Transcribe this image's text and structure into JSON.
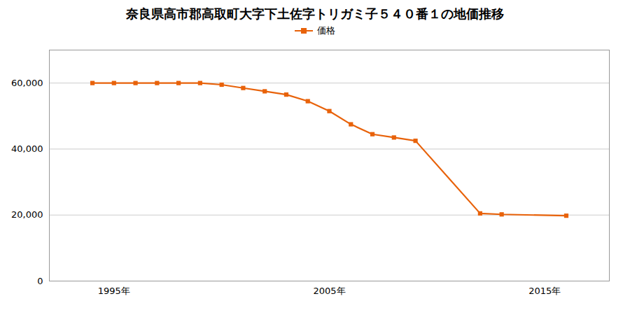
{
  "chart_data": {
    "type": "line",
    "title": "奈良県高市郡高取町大字下土佐字トリガミ子５４０番１の地価推移",
    "x": [
      1994,
      1995,
      1996,
      1997,
      1998,
      1999,
      2000,
      2001,
      2002,
      2003,
      2004,
      2005,
      2006,
      2007,
      2008,
      2009,
      2012,
      2013,
      2016
    ],
    "series": [
      {
        "name": "価格",
        "color": "#e8620a",
        "marker": "square",
        "values": [
          60000,
          60000,
          60000,
          60000,
          60000,
          60000,
          59500,
          58500,
          57500,
          56500,
          54500,
          51500,
          47500,
          44500,
          43500,
          42500,
          20500,
          20200,
          19800
        ]
      }
    ],
    "xlim": [
      1992,
      2018
    ],
    "xticks": [
      {
        "value": 1995,
        "label": "1995年"
      },
      {
        "value": 2005,
        "label": "2005年"
      },
      {
        "value": 2015,
        "label": "2015年"
      }
    ],
    "ylim": [
      0,
      70000
    ],
    "yticks": [
      0,
      {
        "value": 20000,
        "label": "20,000"
      },
      {
        "value": 40000,
        "label": "40,000"
      },
      {
        "value": 60000,
        "label": "60,000"
      }
    ],
    "grid": "y",
    "legend": "top"
  }
}
